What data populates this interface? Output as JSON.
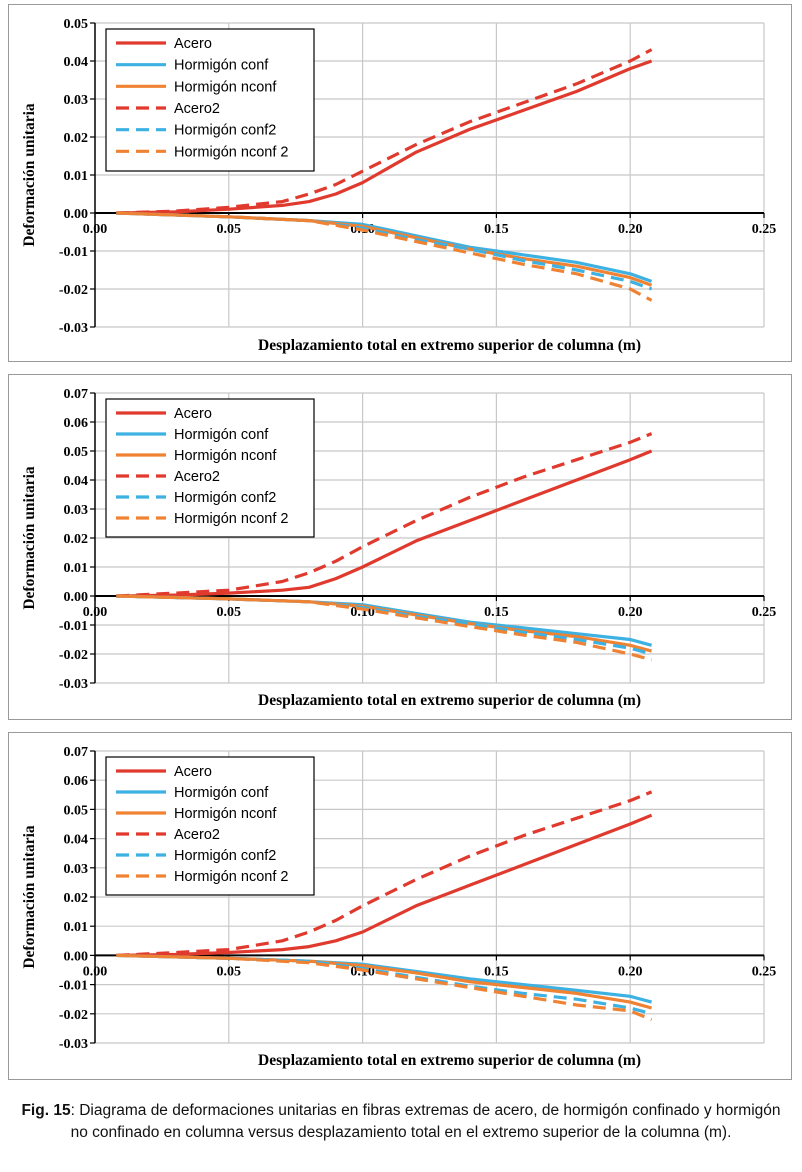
{
  "colors": {
    "acero": "#e03a2e",
    "conf": "#3eb1e3",
    "nconf": "#ef8233",
    "grid": "#c8c8c8",
    "axis": "#000000"
  },
  "caption": {
    "label": "Fig. 15",
    "text": ": Diagrama de deformaciones unitarias en fibras extremas de acero, de hormigón confinado y hormigón no confinado en columna versus desplazamiento total en el extremo superior de la columna (m)."
  },
  "chart_data": [
    {
      "type": "line",
      "xlabel": "Desplazamiento total en extremo superior de columna (m)",
      "ylabel": "Deformación unitaria",
      "xlim": [
        0,
        0.25
      ],
      "ylim": [
        -0.03,
        0.05
      ],
      "xticks": [
        "0.00",
        "0.05",
        "0.10",
        "0.15",
        "0.20",
        "0.25"
      ],
      "yticks": [
        "-0.03",
        "-0.02",
        "-0.01",
        "0.00",
        "0.01",
        "0.02",
        "0.03",
        "0.04",
        "0.05"
      ],
      "legend_position": "top-left",
      "series": [
        {
          "name": "Acero",
          "style": "solid",
          "color": "acero",
          "x": [
            0.008,
            0.03,
            0.05,
            0.07,
            0.08,
            0.09,
            0.1,
            0.12,
            0.14,
            0.16,
            0.18,
            0.2,
            0.208
          ],
          "y": [
            0,
            0.0003,
            0.001,
            0.002,
            0.003,
            0.005,
            0.008,
            0.016,
            0.022,
            0.027,
            0.032,
            0.038,
            0.04
          ]
        },
        {
          "name": "Hormigón conf",
          "style": "solid",
          "color": "conf",
          "x": [
            0.008,
            0.05,
            0.08,
            0.1,
            0.12,
            0.14,
            0.16,
            0.18,
            0.2,
            0.208
          ],
          "y": [
            0,
            -0.001,
            -0.002,
            -0.003,
            -0.006,
            -0.009,
            -0.011,
            -0.013,
            -0.016,
            -0.018
          ]
        },
        {
          "name": "Hormigón nconf",
          "style": "solid",
          "color": "nconf",
          "x": [
            0.008,
            0.05,
            0.08,
            0.1,
            0.12,
            0.14,
            0.16,
            0.18,
            0.2,
            0.208
          ],
          "y": [
            0,
            -0.001,
            -0.002,
            -0.0035,
            -0.0065,
            -0.0095,
            -0.012,
            -0.014,
            -0.017,
            -0.019
          ]
        },
        {
          "name": "Acero2",
          "style": "dashed",
          "color": "acero",
          "x": [
            0.008,
            0.03,
            0.05,
            0.07,
            0.08,
            0.09,
            0.1,
            0.12,
            0.14,
            0.16,
            0.18,
            0.2,
            0.208
          ],
          "y": [
            0,
            0.0005,
            0.0015,
            0.003,
            0.005,
            0.0075,
            0.011,
            0.018,
            0.024,
            0.029,
            0.034,
            0.04,
            0.043
          ]
        },
        {
          "name": "Hormigón conf2",
          "style": "dashed",
          "color": "conf",
          "x": [
            0.008,
            0.05,
            0.08,
            0.1,
            0.12,
            0.14,
            0.16,
            0.18,
            0.2,
            0.208
          ],
          "y": [
            0,
            -0.001,
            -0.002,
            -0.004,
            -0.007,
            -0.0095,
            -0.0125,
            -0.015,
            -0.018,
            -0.02
          ]
        },
        {
          "name": "Hormigón nconf 2",
          "style": "dashed",
          "color": "nconf",
          "x": [
            0.008,
            0.05,
            0.08,
            0.1,
            0.12,
            0.14,
            0.16,
            0.18,
            0.2,
            0.208
          ],
          "y": [
            0,
            -0.001,
            -0.002,
            -0.0045,
            -0.0075,
            -0.0105,
            -0.0135,
            -0.016,
            -0.02,
            -0.023
          ]
        }
      ]
    },
    {
      "type": "line",
      "xlabel": "Desplazamiento total en extremo superior de columna (m)",
      "ylabel": "Deformación unitaria",
      "xlim": [
        0,
        0.25
      ],
      "ylim": [
        -0.03,
        0.07
      ],
      "xticks": [
        "0.00",
        "0.05",
        "0.10",
        "0.15",
        "0.20",
        "0.25"
      ],
      "yticks": [
        "-0.03",
        "-0.02",
        "-0.01",
        "0.00",
        "0.01",
        "0.02",
        "0.03",
        "0.04",
        "0.05",
        "0.06",
        "0.07"
      ],
      "legend_position": "top-left",
      "series": [
        {
          "name": "Acero",
          "style": "solid",
          "color": "acero",
          "x": [
            0.008,
            0.03,
            0.05,
            0.07,
            0.08,
            0.09,
            0.1,
            0.12,
            0.14,
            0.16,
            0.18,
            0.2,
            0.208
          ],
          "y": [
            0,
            0.0003,
            0.001,
            0.002,
            0.003,
            0.006,
            0.01,
            0.019,
            0.026,
            0.033,
            0.04,
            0.047,
            0.05
          ]
        },
        {
          "name": "Hormigón conf",
          "style": "solid",
          "color": "conf",
          "x": [
            0.008,
            0.05,
            0.08,
            0.1,
            0.12,
            0.14,
            0.16,
            0.18,
            0.2,
            0.208
          ],
          "y": [
            0,
            -0.001,
            -0.002,
            -0.003,
            -0.006,
            -0.009,
            -0.011,
            -0.013,
            -0.015,
            -0.017
          ]
        },
        {
          "name": "Hormigón nconf",
          "style": "solid",
          "color": "nconf",
          "x": [
            0.008,
            0.05,
            0.08,
            0.1,
            0.12,
            0.14,
            0.16,
            0.18,
            0.2,
            0.208
          ],
          "y": [
            0,
            -0.001,
            -0.002,
            -0.0035,
            -0.0065,
            -0.0095,
            -0.012,
            -0.014,
            -0.017,
            -0.019
          ]
        },
        {
          "name": "Acero2",
          "style": "dashed",
          "color": "acero",
          "x": [
            0.008,
            0.03,
            0.05,
            0.07,
            0.08,
            0.09,
            0.1,
            0.12,
            0.14,
            0.16,
            0.18,
            0.2,
            0.208
          ],
          "y": [
            0,
            0.001,
            0.002,
            0.005,
            0.008,
            0.012,
            0.017,
            0.026,
            0.034,
            0.041,
            0.047,
            0.053,
            0.056
          ]
        },
        {
          "name": "Hormigón conf2",
          "style": "dashed",
          "color": "conf",
          "x": [
            0.008,
            0.05,
            0.08,
            0.1,
            0.12,
            0.14,
            0.16,
            0.18,
            0.2,
            0.208
          ],
          "y": [
            0,
            -0.001,
            -0.002,
            -0.004,
            -0.007,
            -0.0095,
            -0.0125,
            -0.015,
            -0.018,
            -0.02
          ]
        },
        {
          "name": "Hormigón nconf 2",
          "style": "dashed",
          "color": "nconf",
          "x": [
            0.008,
            0.05,
            0.08,
            0.1,
            0.12,
            0.14,
            0.16,
            0.18,
            0.2,
            0.208
          ],
          "y": [
            0,
            -0.001,
            -0.002,
            -0.0045,
            -0.0075,
            -0.0105,
            -0.0135,
            -0.016,
            -0.02,
            -0.022
          ]
        }
      ]
    },
    {
      "type": "line",
      "xlabel": "Desplazamiento total en extremo superior de columna (m)",
      "ylabel": "Deformación unitaria",
      "xlim": [
        0,
        0.25
      ],
      "ylim": [
        -0.03,
        0.07
      ],
      "xticks": [
        "0.00",
        "0.05",
        "0.10",
        "0.15",
        "0.20",
        "0.25"
      ],
      "yticks": [
        "-0.03",
        "-0.02",
        "-0.01",
        "0.00",
        "0.01",
        "0.02",
        "0.03",
        "0.04",
        "0.05",
        "0.06",
        "0.07"
      ],
      "legend_position": "top-left",
      "series": [
        {
          "name": "Acero",
          "style": "solid",
          "color": "acero",
          "x": [
            0.008,
            0.03,
            0.05,
            0.07,
            0.08,
            0.09,
            0.1,
            0.12,
            0.14,
            0.16,
            0.18,
            0.2,
            0.208
          ],
          "y": [
            0,
            0.0003,
            0.001,
            0.002,
            0.003,
            0.005,
            0.008,
            0.017,
            0.024,
            0.031,
            0.038,
            0.045,
            0.048
          ]
        },
        {
          "name": "Hormigón conf",
          "style": "solid",
          "color": "conf",
          "x": [
            0.008,
            0.05,
            0.08,
            0.1,
            0.12,
            0.14,
            0.16,
            0.18,
            0.2,
            0.208
          ],
          "y": [
            0,
            -0.001,
            -0.002,
            -0.003,
            -0.0055,
            -0.008,
            -0.01,
            -0.012,
            -0.014,
            -0.016
          ]
        },
        {
          "name": "Hormigón nconf",
          "style": "solid",
          "color": "nconf",
          "x": [
            0.008,
            0.05,
            0.08,
            0.1,
            0.12,
            0.14,
            0.16,
            0.18,
            0.2,
            0.208
          ],
          "y": [
            0,
            -0.001,
            -0.002,
            -0.0035,
            -0.006,
            -0.009,
            -0.011,
            -0.013,
            -0.016,
            -0.018
          ]
        },
        {
          "name": "Acero2",
          "style": "dashed",
          "color": "acero",
          "x": [
            0.008,
            0.03,
            0.05,
            0.07,
            0.08,
            0.09,
            0.1,
            0.12,
            0.14,
            0.16,
            0.18,
            0.2,
            0.208
          ],
          "y": [
            0,
            0.001,
            0.002,
            0.005,
            0.008,
            0.012,
            0.017,
            0.026,
            0.034,
            0.041,
            0.047,
            0.053,
            0.056
          ]
        },
        {
          "name": "Hormigón conf2",
          "style": "dashed",
          "color": "conf",
          "x": [
            0.008,
            0.05,
            0.08,
            0.1,
            0.12,
            0.14,
            0.16,
            0.18,
            0.2,
            0.208
          ],
          "y": [
            0,
            -0.001,
            -0.002,
            -0.0045,
            -0.0075,
            -0.0105,
            -0.013,
            -0.015,
            -0.018,
            -0.02
          ]
        },
        {
          "name": "Hormigón nconf 2",
          "style": "dashed",
          "color": "nconf",
          "x": [
            0.008,
            0.05,
            0.08,
            0.1,
            0.12,
            0.14,
            0.16,
            0.18,
            0.2,
            0.208
          ],
          "y": [
            0,
            -0.001,
            -0.0025,
            -0.005,
            -0.008,
            -0.011,
            -0.014,
            -0.017,
            -0.019,
            -0.022
          ]
        }
      ]
    }
  ]
}
